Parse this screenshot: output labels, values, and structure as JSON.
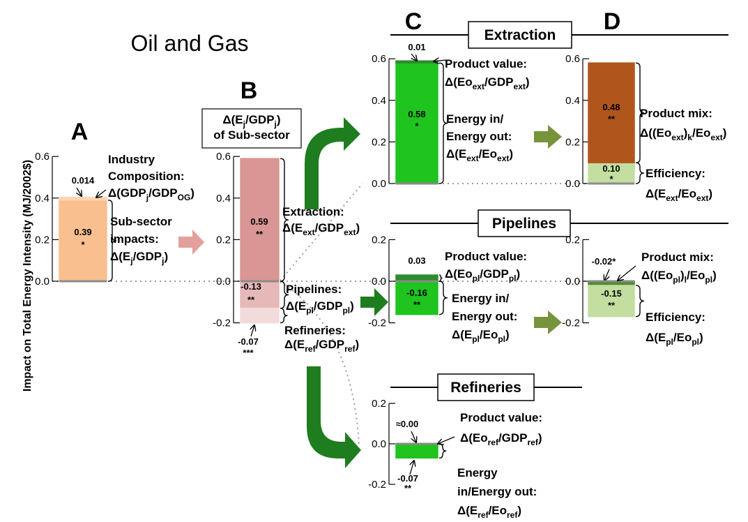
{
  "title": "Oil and Gas",
  "y_label": "Impact on Total Energy Intensity (MJ/2002$)",
  "column_labels": [
    "C",
    "D"
  ],
  "sections": [
    "Extraction",
    "Pipelines",
    "Refineries"
  ],
  "chart_data": [
    {
      "type": "stacked-bar",
      "label": "A",
      "ylim": [
        0,
        0.6
      ],
      "yticks": [
        {
          "value": 0,
          "label": "0.0"
        },
        0.2,
        0.4,
        0.6
      ],
      "values": [
        0.39,
        0.014
      ],
      "value_labels": [
        "0.39",
        "0.014"
      ],
      "stars": [
        "*",
        null
      ],
      "colors": [
        "#f9bf8f",
        "#fcd5b4"
      ],
      "annotations": [
        [
          [
            "Industry"
          ],
          [
            "Composition:"
          ],
          [
            "Δ(GDP",
            "j",
            "/GDP",
            "OG",
            ")"
          ]
        ],
        [
          [
            "Sub-sector"
          ],
          [
            "impacts:"
          ],
          [
            "Δ(E",
            "j",
            "/GDP",
            "j",
            ")"
          ]
        ]
      ]
    },
    {
      "type": "stacked-bar",
      "label": "B",
      "header": [
        [
          "Δ(E",
          "j",
          "/GDP",
          "j",
          ")"
        ],
        [
          "of Sub-sector"
        ]
      ],
      "ylim": [
        -0.2,
        0.6
      ],
      "yticks": [
        -0.2,
        {
          "value": 0,
          "label": "0.0"
        },
        0.2,
        0.4,
        0.6
      ],
      "values": [
        0.59,
        -0.13,
        -0.07
      ],
      "value_labels": [
        "0.59",
        "-0.13",
        "-0.07"
      ],
      "stars": [
        "**",
        "**",
        "***"
      ],
      "colors": [
        "#d99694",
        "#e6b9b8",
        "#f2dcdb"
      ],
      "annotations": [
        [
          [
            "Extraction:"
          ],
          [
            "Δ(E",
            "ext",
            "/GDP",
            "ext",
            ")"
          ]
        ],
        [
          [
            "Pipelines:"
          ],
          [
            "Δ(E",
            "pl",
            "/GDP",
            "pl",
            ")"
          ]
        ],
        [
          [
            "Refineries:"
          ],
          [
            "Δ(E",
            "ref",
            "/GDP",
            "ref",
            ")"
          ]
        ]
      ]
    },
    {
      "type": "stacked-bar",
      "ylim": [
        0,
        0.6
      ],
      "yticks": [
        {
          "value": 0,
          "label": "0.0"
        },
        0.2,
        0.4,
        0.6
      ],
      "values": [
        0.58,
        0.01
      ],
      "value_labels": [
        "0.58",
        "0.01"
      ],
      "stars": [
        "*",
        null
      ],
      "colors": [
        "#1fc41f",
        "#2e8b2e"
      ],
      "annotations": [
        [
          [
            "Product value:"
          ],
          [
            "Δ(Eo",
            "ext",
            "/GDP",
            "ext",
            ")"
          ]
        ],
        [
          [
            "Energy in/"
          ],
          [
            "Energy out:"
          ],
          [
            "Δ(E",
            "ext",
            "/Eo",
            "ext",
            ")"
          ]
        ]
      ]
    },
    {
      "type": "stacked-bar",
      "ylim": [
        0,
        0.6
      ],
      "yticks": [
        {
          "value": 0,
          "label": "0.0"
        },
        0.2,
        0.4,
        0.6
      ],
      "values": [
        0.1,
        0.48
      ],
      "value_labels": [
        "0.10",
        "0.48"
      ],
      "stars": [
        "*",
        "**"
      ],
      "colors": [
        "#c3dea0",
        "#b0561c"
      ],
      "annotations": [
        [
          [
            "Product mix:"
          ],
          [
            "Δ((Eo",
            "ext",
            ")",
            "k",
            "/Eo",
            "ext",
            ")"
          ]
        ],
        [
          [
            "Efficiency:"
          ],
          [
            "Δ(E",
            "ext",
            "/Eo",
            "ext",
            ")"
          ]
        ]
      ]
    },
    {
      "type": "stacked-bar",
      "ylim": [
        -0.2,
        0.2
      ],
      "yticks": [
        -0.2,
        {
          "value": 0,
          "label": "0.0"
        },
        0.2
      ],
      "values": [
        0.03,
        -0.16
      ],
      "value_labels": [
        "0.03",
        "-0.16"
      ],
      "stars": [
        null,
        "**"
      ],
      "colors": [
        "#2e8b2e",
        "#1fc41f"
      ],
      "annotations": [
        [
          [
            "Product value:"
          ],
          [
            "Δ(Eo",
            "pl",
            "/GDP",
            "pl",
            ")"
          ]
        ],
        [
          [
            "Energy in/"
          ],
          [
            "Energy out:"
          ],
          [
            "Δ(E",
            "pl",
            "/Eo",
            "pl",
            ")"
          ]
        ]
      ]
    },
    {
      "type": "stacked-bar",
      "ylim": [
        -0.2,
        0.2
      ],
      "yticks": [
        -0.2,
        {
          "value": 0,
          "label": "0.0"
        },
        0.2
      ],
      "values": [
        -0.02,
        -0.15
      ],
      "value_labels": [
        "-0.02*",
        "-0.15"
      ],
      "stars": [
        null,
        "**"
      ],
      "colors": [
        "#4f8a2e",
        "#c3dea0"
      ],
      "annotations": [
        [
          [
            "Product mix:"
          ],
          [
            "Δ((Eo",
            "pl",
            ")",
            "l",
            "/Eo",
            "pl",
            ")"
          ]
        ],
        [
          [
            "Efficiency:"
          ],
          [
            "Δ(E",
            "pl",
            "/Eo",
            "pl",
            ")"
          ]
        ]
      ]
    },
    {
      "type": "stacked-bar",
      "ylim": [
        -0.2,
        0.2
      ],
      "yticks": [
        -0.2,
        {
          "value": 0,
          "label": "0.0"
        },
        0.2
      ],
      "values": [
        0,
        -0.07
      ],
      "value_labels": [
        "≈0.00",
        "-0.07"
      ],
      "stars": [
        null,
        "**"
      ],
      "colors": [
        "#808080",
        "#1fc41f"
      ],
      "annotations": [
        [
          [
            "Product value:"
          ],
          [
            "Δ(Eo",
            "ref",
            "/GDP",
            "ref",
            ")"
          ]
        ],
        [
          [
            "Energy"
          ],
          [
            "in/Energy out:"
          ],
          [
            "Δ(E",
            "ref",
            "/Eo",
            "ref",
            ")"
          ]
        ]
      ]
    }
  ]
}
